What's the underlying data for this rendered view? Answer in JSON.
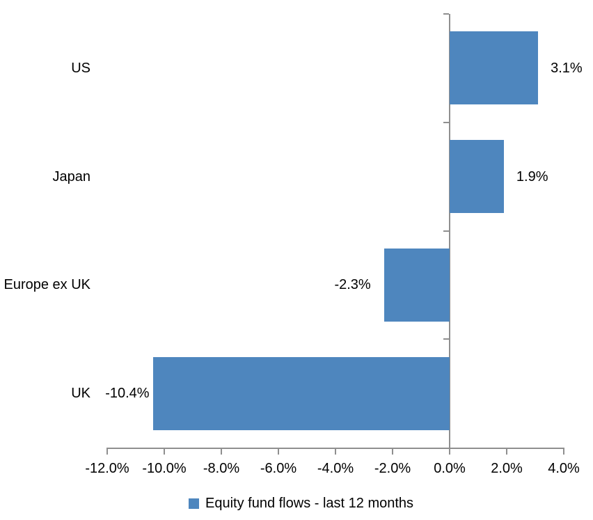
{
  "chart_data": {
    "type": "bar",
    "orientation": "horizontal",
    "categories": [
      "US",
      "Japan",
      "Europe ex UK",
      "UK"
    ],
    "series": [
      {
        "name": "Equity fund flows - last 12 months",
        "values": [
          3.1,
          1.9,
          -2.3,
          -10.4
        ],
        "data_labels": [
          "3.1%",
          "1.9%",
          "-2.3%",
          "-10.4%"
        ],
        "color": "#4E86BE"
      }
    ],
    "xlim": [
      -12,
      4
    ],
    "x_ticks": [
      -12,
      -10,
      -8,
      -6,
      -4,
      -2,
      0,
      2,
      4
    ],
    "x_tick_labels": [
      "-12.0%",
      "-10.0%",
      "-8.0%",
      "-6.0%",
      "-4.0%",
      "-2.0%",
      "0.0%",
      "2.0%",
      "4.0%"
    ],
    "grid": false,
    "legend": {
      "position": "bottom",
      "items": [
        {
          "label": "Equity fund flows - last 12 months",
          "color": "#4E86BE"
        }
      ]
    },
    "colors": {
      "bar": "#4E86BE",
      "axis": "#8F8F8F",
      "text": "#000000",
      "background": "#FFFFFF"
    }
  }
}
